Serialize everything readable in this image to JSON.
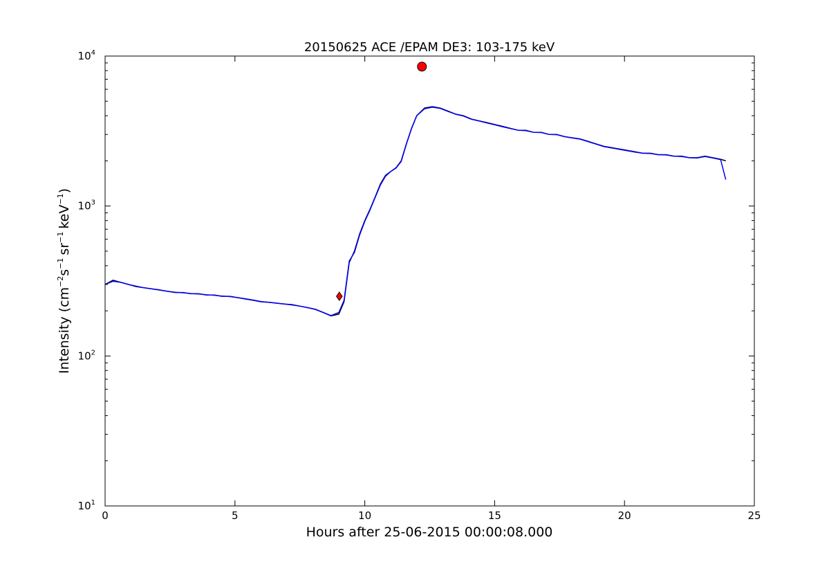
{
  "chart_data": {
    "type": "line",
    "title": "20150625 ACE /EPAM DE3: 103-175 keV",
    "xlabel": "Hours after 25-06-2015 00:00:08.000",
    "ylabel": {
      "prefix": "Intensity (cm",
      "exp1": "−2",
      "mid1": "s",
      "exp2": "−1",
      "mid2": "sr",
      "exp3": "−1",
      "mid3": "keV",
      "exp4": "−1",
      "suffix": ")"
    },
    "xlim": [
      0,
      25
    ],
    "ylim": [
      10,
      10000
    ],
    "yscale": "log",
    "grid": false,
    "x_ticks": [
      {
        "value": 0,
        "label": "0"
      },
      {
        "value": 5,
        "label": "5"
      },
      {
        "value": 10,
        "label": "10"
      },
      {
        "value": 15,
        "label": "15"
      },
      {
        "value": 20,
        "label": "20"
      },
      {
        "value": 25,
        "label": "25"
      }
    ],
    "y_ticks": [
      {
        "value": 10,
        "base": "10",
        "exp": "1"
      },
      {
        "value": 100,
        "base": "10",
        "exp": "2"
      },
      {
        "value": 1000,
        "base": "10",
        "exp": "3"
      },
      {
        "value": 10000,
        "base": "10",
        "exp": "4"
      }
    ],
    "series": [
      {
        "color": "#000000",
        "points": [
          [
            0.0,
            300
          ],
          [
            0.3,
            320
          ],
          [
            0.6,
            310
          ],
          [
            0.9,
            300
          ],
          [
            1.2,
            290
          ],
          [
            1.5,
            285
          ],
          [
            1.8,
            280
          ],
          [
            2.1,
            275
          ],
          [
            2.4,
            270
          ],
          [
            2.7,
            265
          ],
          [
            3.0,
            265
          ],
          [
            3.3,
            260
          ],
          [
            3.6,
            260
          ],
          [
            3.9,
            255
          ],
          [
            4.2,
            255
          ],
          [
            4.5,
            250
          ],
          [
            4.8,
            250
          ],
          [
            5.1,
            245
          ],
          [
            5.4,
            240
          ],
          [
            5.7,
            235
          ],
          [
            6.0,
            230
          ],
          [
            6.3,
            228
          ],
          [
            6.6,
            225
          ],
          [
            6.9,
            222
          ],
          [
            7.2,
            220
          ],
          [
            7.5,
            215
          ],
          [
            7.8,
            210
          ],
          [
            8.1,
            205
          ],
          [
            8.4,
            195
          ],
          [
            8.7,
            185
          ],
          [
            9.0,
            190
          ],
          [
            9.2,
            230
          ],
          [
            9.4,
            420
          ],
          [
            9.6,
            500
          ],
          [
            9.8,
            650
          ],
          [
            10.0,
            800
          ],
          [
            10.2,
            950
          ],
          [
            10.4,
            1150
          ],
          [
            10.6,
            1400
          ],
          [
            10.8,
            1600
          ],
          [
            11.0,
            1700
          ],
          [
            11.2,
            1800
          ],
          [
            11.4,
            2000
          ],
          [
            11.6,
            2600
          ],
          [
            11.8,
            3300
          ],
          [
            12.0,
            4000
          ],
          [
            12.3,
            4500
          ],
          [
            12.6,
            4600
          ],
          [
            12.9,
            4500
          ],
          [
            13.2,
            4300
          ],
          [
            13.5,
            4100
          ],
          [
            13.8,
            4000
          ],
          [
            14.1,
            3800
          ],
          [
            14.4,
            3700
          ],
          [
            14.7,
            3600
          ],
          [
            15.0,
            3500
          ],
          [
            15.3,
            3400
          ],
          [
            15.6,
            3300
          ],
          [
            15.9,
            3200
          ],
          [
            16.2,
            3200
          ],
          [
            16.5,
            3100
          ],
          [
            16.8,
            3100
          ],
          [
            17.1,
            3000
          ],
          [
            17.4,
            3000
          ],
          [
            17.7,
            2900
          ],
          [
            18.0,
            2850
          ],
          [
            18.3,
            2800
          ],
          [
            18.6,
            2700
          ],
          [
            18.9,
            2600
          ],
          [
            19.2,
            2500
          ],
          [
            19.5,
            2450
          ],
          [
            19.8,
            2400
          ],
          [
            20.1,
            2350
          ],
          [
            20.4,
            2300
          ],
          [
            20.7,
            2250
          ],
          [
            21.0,
            2250
          ],
          [
            21.3,
            2200
          ],
          [
            21.6,
            2200
          ],
          [
            21.9,
            2150
          ],
          [
            22.2,
            2150
          ],
          [
            22.5,
            2100
          ],
          [
            22.8,
            2100
          ],
          [
            23.1,
            2150
          ],
          [
            23.4,
            2100
          ],
          [
            23.7,
            2050
          ],
          [
            23.9,
            2000
          ]
        ]
      },
      {
        "color": "#0000ff",
        "points": [
          [
            0.0,
            300
          ],
          [
            0.3,
            315
          ],
          [
            0.6,
            310
          ],
          [
            0.9,
            300
          ],
          [
            1.2,
            292
          ],
          [
            1.5,
            285
          ],
          [
            1.8,
            280
          ],
          [
            2.1,
            276
          ],
          [
            2.4,
            270
          ],
          [
            2.7,
            266
          ],
          [
            3.0,
            264
          ],
          [
            3.3,
            261
          ],
          [
            3.6,
            259
          ],
          [
            3.9,
            256
          ],
          [
            4.2,
            254
          ],
          [
            4.5,
            251
          ],
          [
            4.8,
            249
          ],
          [
            5.1,
            245
          ],
          [
            5.4,
            241
          ],
          [
            5.7,
            236
          ],
          [
            6.0,
            231
          ],
          [
            6.3,
            228
          ],
          [
            6.6,
            225
          ],
          [
            6.9,
            222
          ],
          [
            7.2,
            219
          ],
          [
            7.5,
            215
          ],
          [
            7.8,
            210
          ],
          [
            8.1,
            204
          ],
          [
            8.4,
            195
          ],
          [
            8.7,
            186
          ],
          [
            9.0,
            195
          ],
          [
            9.2,
            235
          ],
          [
            9.4,
            430
          ],
          [
            9.6,
            490
          ],
          [
            9.8,
            640
          ],
          [
            10.0,
            790
          ],
          [
            10.2,
            940
          ],
          [
            10.4,
            1140
          ],
          [
            10.6,
            1380
          ],
          [
            10.8,
            1580
          ],
          [
            11.0,
            1700
          ],
          [
            11.2,
            1790
          ],
          [
            11.4,
            1980
          ],
          [
            11.6,
            2580
          ],
          [
            11.8,
            3280
          ],
          [
            12.0,
            4000
          ],
          [
            12.3,
            4450
          ],
          [
            12.6,
            4560
          ],
          [
            12.9,
            4480
          ],
          [
            13.2,
            4280
          ],
          [
            13.5,
            4090
          ],
          [
            13.8,
            3980
          ],
          [
            14.1,
            3790
          ],
          [
            14.4,
            3690
          ],
          [
            14.7,
            3580
          ],
          [
            15.0,
            3480
          ],
          [
            15.3,
            3380
          ],
          [
            15.6,
            3290
          ],
          [
            15.9,
            3200
          ],
          [
            16.2,
            3180
          ],
          [
            16.5,
            3100
          ],
          [
            16.8,
            3090
          ],
          [
            17.1,
            3000
          ],
          [
            17.4,
            2990
          ],
          [
            17.7,
            2900
          ],
          [
            18.0,
            2840
          ],
          [
            18.3,
            2790
          ],
          [
            18.6,
            2690
          ],
          [
            18.9,
            2590
          ],
          [
            19.2,
            2490
          ],
          [
            19.5,
            2440
          ],
          [
            19.8,
            2390
          ],
          [
            20.1,
            2340
          ],
          [
            20.4,
            2290
          ],
          [
            20.7,
            2250
          ],
          [
            21.0,
            2240
          ],
          [
            21.3,
            2200
          ],
          [
            21.6,
            2190
          ],
          [
            21.9,
            2150
          ],
          [
            22.2,
            2140
          ],
          [
            22.5,
            2100
          ],
          [
            22.8,
            2090
          ],
          [
            23.1,
            2140
          ],
          [
            23.4,
            2090
          ],
          [
            23.7,
            2040
          ],
          [
            23.9,
            1500
          ]
        ]
      }
    ],
    "markers": [
      {
        "shape": "diamond",
        "x": 9.02,
        "y": 250,
        "color": "#ff0000"
      },
      {
        "shape": "circle",
        "x": 12.2,
        "y": 8500,
        "color": "#ff0000"
      }
    ]
  }
}
